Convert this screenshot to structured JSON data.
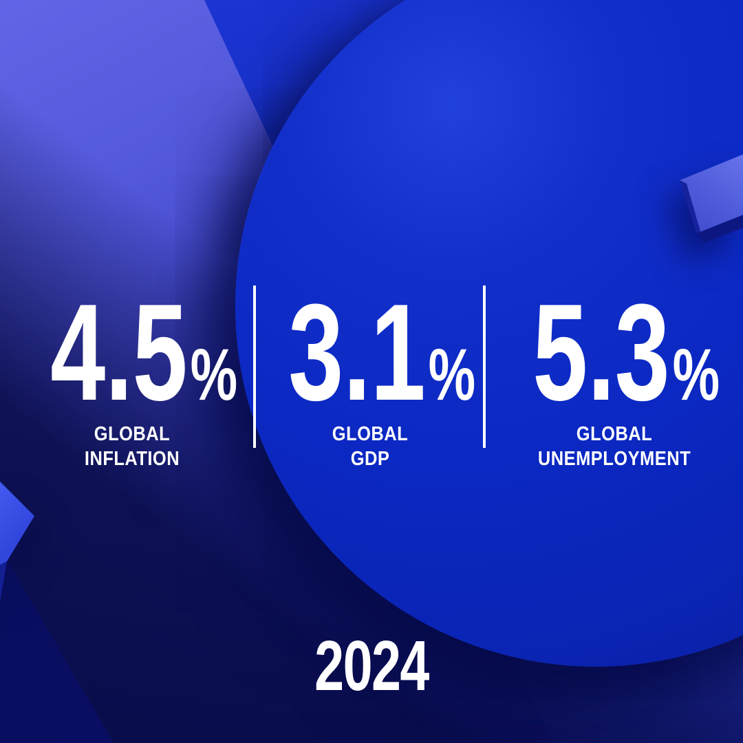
{
  "year": "2024",
  "stats": [
    {
      "value": "4.5",
      "unit": "%",
      "label_line1": "GLOBAL",
      "label_line2": "INFLATION"
    },
    {
      "value": "3.1",
      "unit": "%",
      "label_line1": "GLOBAL",
      "label_line2": "GDP"
    },
    {
      "value": "5.3",
      "unit": "%",
      "label_line1": "GLOBAL",
      "label_line2": "UNEMPLOYMENT"
    }
  ],
  "chart_data": {
    "type": "table",
    "title": "2024",
    "categories": [
      "GLOBAL INFLATION",
      "GLOBAL GDP",
      "GLOBAL UNEMPLOYMENT"
    ],
    "values": [
      4.5,
      3.1,
      5.3
    ],
    "unit": "%"
  },
  "colors": {
    "background_light": "#5b60e0",
    "circle_blue": "#0b28c2",
    "dark_navy": "#090d5c",
    "accent_3d_face": "#4d5ad9",
    "text": "#ffffff"
  }
}
